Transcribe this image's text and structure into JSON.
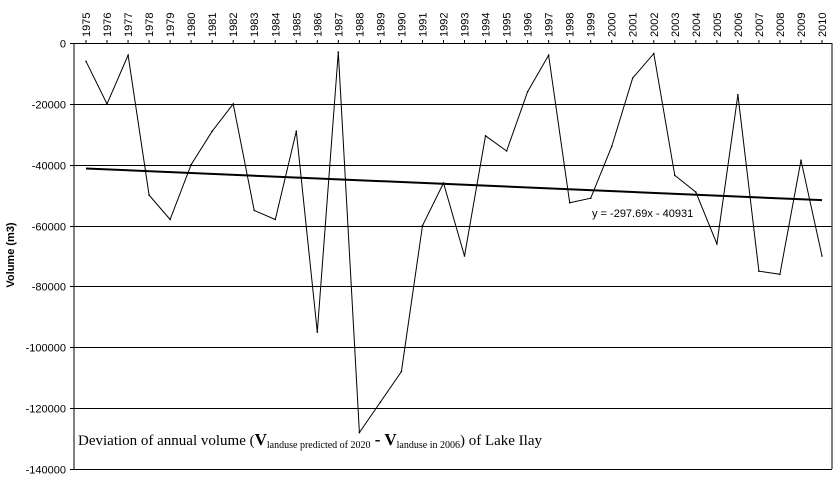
{
  "chart_data": {
    "type": "line",
    "ylabel": "Volume (m3)",
    "ylim": [
      -140000,
      0
    ],
    "yticks": [
      0,
      -20000,
      -40000,
      -60000,
      -80000,
      -100000,
      -120000,
      -140000
    ],
    "ytick_labels": [
      "0",
      "-20000",
      "-40000",
      "-60000",
      "-80000",
      "-100000",
      "-120000",
      "-140000"
    ],
    "grid": true,
    "categories": [
      "1975",
      "1976",
      "1977",
      "1978",
      "1979",
      "1980",
      "1981",
      "1982",
      "1983",
      "1984",
      "1985",
      "1986",
      "1987",
      "1988",
      "1989",
      "1990",
      "1991",
      "1992",
      "1993",
      "1994",
      "1995",
      "1996",
      "1997",
      "1998",
      "1999",
      "2000",
      "2001",
      "2002",
      "2003",
      "2004",
      "2005",
      "2006",
      "2007",
      "2008",
      "2009",
      "2010"
    ],
    "series": [
      {
        "values": [
          -6000,
          -20000,
          -4000,
          -50000,
          -58000,
          -40000,
          -29000,
          -20000,
          -55000,
          -58000,
          -29000,
          -95000,
          -3000,
          -128000,
          -118000,
          -108000,
          -60000,
          -46000,
          -70000,
          -30500,
          -35500,
          -16000,
          -4000,
          -52500,
          -51000,
          -34000,
          -11500,
          -3500,
          -43500,
          -49000,
          -66000,
          -17000,
          -75000,
          -76000,
          -38500,
          -70000
        ]
      }
    ],
    "trendline": {
      "slope": -297.69,
      "intercept": -40931,
      "label": "y = -297.69x - 40931"
    },
    "caption": {
      "prefix": "Deviation of annual volume (",
      "v1": "V",
      "sub1": "landuse predicted of 2020",
      "minus": " - ",
      "v2": "V",
      "sub2": "landuse in 2006",
      "suffix": ") of Lake Ilay"
    },
    "colors": {
      "series": "#000000",
      "trend": "#000000",
      "grid": "#000000"
    }
  }
}
